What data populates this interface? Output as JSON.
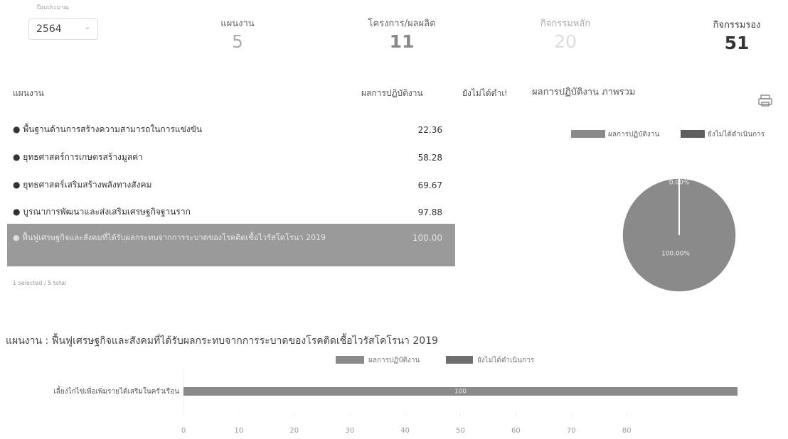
{
  "filter": {
    "label": "ปีงบประมาณ",
    "value": "2564"
  },
  "kpis": [
    {
      "label": "แผนงาน",
      "value": "5"
    },
    {
      "label": "โครงการ/ผลผลิต",
      "value": "11"
    },
    {
      "label": "กิจกรรมหลัก",
      "value": "20"
    },
    {
      "label": "กิจกรรมรอง",
      "value": "51"
    }
  ],
  "table": {
    "columns": [
      "แผนงาน",
      "ผลการปฏิบัติงาน",
      "ยังไม่ได้ดำเนินการ"
    ],
    "rows": [
      {
        "name": "พื้นฐานด้านการสร้างความสามารถในการแข่งขัน",
        "value": "22.36"
      },
      {
        "name": "ยุทธศาสตร์การเกษตรสร้างมูลค่า",
        "value": "58.28"
      },
      {
        "name": "ยุทธศาสตร์เสริมสร้างพลังทางสังคม",
        "value": "69.67"
      },
      {
        "name": "บูรณาการพัฒนาและส่งเสริมเศรษฐกิจฐานราก",
        "value": "97.88"
      },
      {
        "name": "ฟื้นฟูเศรษฐกิจและสังคมที่ได้รับผลกระทบจากการระบาดของโรคติดเชื้อไวรัสโคโรนา 2019",
        "value": "100.00"
      }
    ],
    "footer": "1 selected / 5 total"
  },
  "chart_data": [
    {
      "type": "pie",
      "title": "ผลการปฏิบัติงาน ภาพรวม",
      "categories": [
        "ผลการปฏิบัติงาน",
        "ยังไม่ได้ดำเนินการ"
      ],
      "values": [
        100,
        0
      ],
      "value_labels": [
        "100.00%",
        "0.00%"
      ],
      "colors": [
        "#8a8a8a",
        "#5e5e5e"
      ]
    },
    {
      "type": "bar",
      "orientation": "horizontal",
      "stacked": true,
      "title": "แผนงาน : ฟื้นฟูเศรษฐกิจและสังคมที่ได้รับผลกระทบจากการระบาดของโรคติดเชื้อไวรัสโคโรนา 2019",
      "categories": [
        "เลี้ยงไก่ไข่เพื่อเพิ่มรายได้เสริมในครัวเรือน"
      ],
      "series": [
        {
          "name": "ผลการปฏิบัติงาน",
          "color": "#8a8a8a",
          "values": [
            100
          ]
        },
        {
          "name": "ยังไม่ได้ดำเนินการ",
          "color": "#6e6e6e",
          "values": [
            0
          ]
        }
      ],
      "xlim": [
        0,
        100
      ],
      "xticks": [
        0,
        10,
        20,
        30,
        40,
        50,
        60,
        70,
        80
      ]
    }
  ]
}
